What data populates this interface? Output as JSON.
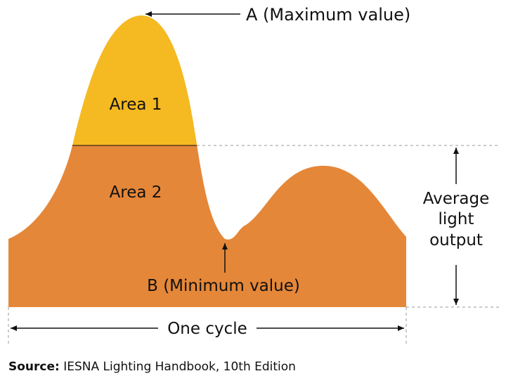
{
  "diagram": {
    "colors": {
      "upper_fill": "#f5b921",
      "lower_fill": "#e58739",
      "outline": "#111111",
      "dashed_line": "#999999"
    },
    "labels": {
      "max": "A (Maximum value)",
      "min": "B (Minimum value)",
      "area1": "Area 1",
      "area2": "Area 2",
      "average_line1": "Average",
      "average_line2": "light",
      "average_line3": "output",
      "cycle": "One cycle"
    }
  },
  "source": {
    "prefix": "Source:",
    "text": "IESNA Lighting Handbook, 10th Edition"
  }
}
